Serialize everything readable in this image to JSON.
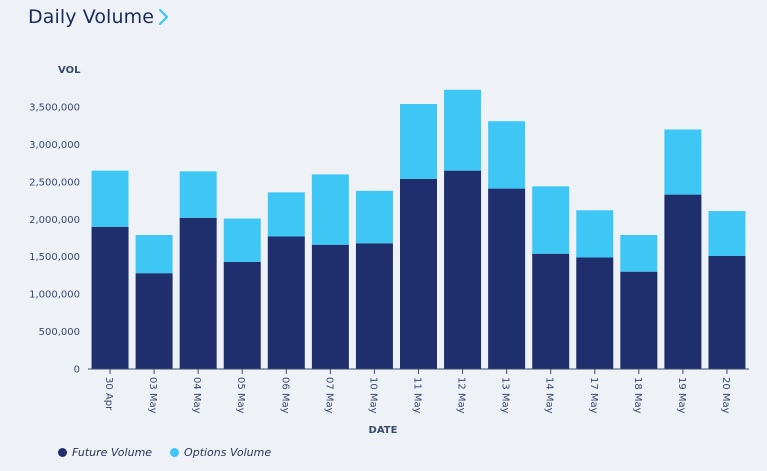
{
  "header": {
    "title": "Daily Volume"
  },
  "colors": {
    "future": "#1f2f6e",
    "options": "#3ec6f5",
    "axis": "#3b4a6b"
  },
  "legend": [
    {
      "label": "Future Volume",
      "color": "#1f2f6e"
    },
    {
      "label": "Options Volume",
      "color": "#3ec6f5"
    }
  ],
  "chart_data": {
    "type": "bar",
    "stacked": true,
    "categories": [
      "30 Apr",
      "03 May",
      "04 May",
      "05 May",
      "06 May",
      "07 May",
      "10 May",
      "11 May",
      "12 May",
      "13 May",
      "14 May",
      "17 May",
      "18 May",
      "19 May",
      "20 May"
    ],
    "series": [
      {
        "name": "Future Volume",
        "values": [
          1900000,
          1280000,
          2020000,
          1430000,
          1770000,
          1660000,
          1680000,
          2540000,
          2650000,
          2410000,
          1540000,
          1490000,
          1300000,
          2330000,
          1510000
        ]
      },
      {
        "name": "Options Volume",
        "values": [
          750000,
          510000,
          620000,
          580000,
          590000,
          940000,
          700000,
          1000000,
          1080000,
          900000,
          900000,
          630000,
          490000,
          870000,
          600000
        ]
      }
    ],
    "ylabel": "VOL",
    "xlabel": "DATE",
    "ylim": [
      0,
      3500000
    ],
    "yticks": [
      0,
      500000,
      1000000,
      1500000,
      2000000,
      2500000,
      3000000,
      3500000
    ],
    "ytick_labels": [
      "0",
      "500,000",
      "1,000,000",
      "1,500,000",
      "2,000,000",
      "2,500,000",
      "3,000,000",
      "3,500,000"
    ],
    "grid": false,
    "legend_position": "bottom-left"
  }
}
